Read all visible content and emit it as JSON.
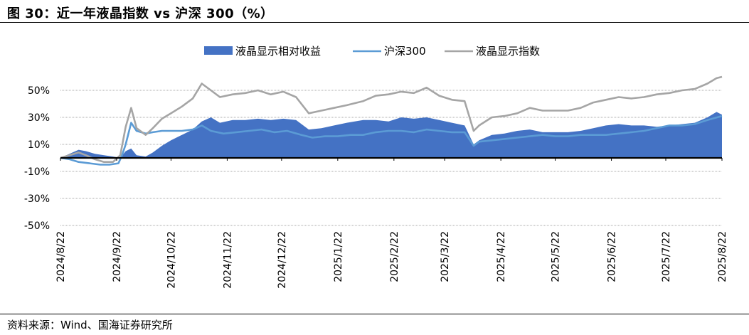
{
  "figure": {
    "title": "图 30：近一年液晶指数 vs 沪深 300（%）",
    "source": "资料来源：Wind、国海证券研究所"
  },
  "chart_data": {
    "type": "area",
    "legend_position": "top",
    "grid": true,
    "ylim": [
      -50,
      60
    ],
    "y_ticks": [
      "50%",
      "30%",
      "10%",
      "-10%",
      "-30%",
      "-50%"
    ],
    "y_tick_values": [
      50,
      30,
      10,
      -10,
      -30,
      -50
    ],
    "x_ticks": [
      "2024/8/22",
      "2024/9/22",
      "2024/10/22",
      "2024/11/22",
      "2024/12/22",
      "2025/1/22",
      "2025/2/22",
      "2025/3/22",
      "2025/4/22",
      "2025/5/22",
      "2025/6/22",
      "2025/7/22",
      "2025/8/22"
    ],
    "x_tick_dates": [
      "2024-08-22",
      "2024-09-22",
      "2024-10-22",
      "2024-11-22",
      "2024-12-22",
      "2025-01-22",
      "2025-02-22",
      "2025-03-22",
      "2025-04-22",
      "2025-05-22",
      "2025-06-22",
      "2025-07-22",
      "2025-08-22"
    ],
    "series": [
      {
        "name": "液晶显示相对收益",
        "kind": "area",
        "color": "#4472C4",
        "points": [
          [
            "2024-08-22",
            0
          ],
          [
            "2024-08-27",
            3
          ],
          [
            "2024-09-01",
            6
          ],
          [
            "2024-09-05",
            5
          ],
          [
            "2024-09-10",
            3
          ],
          [
            "2024-09-15",
            2
          ],
          [
            "2024-09-20",
            1
          ],
          [
            "2024-09-24",
            0
          ],
          [
            "2024-09-27",
            5
          ],
          [
            "2024-09-30",
            7
          ],
          [
            "2024-10-03",
            2
          ],
          [
            "2024-10-08",
            1
          ],
          [
            "2024-10-12",
            4
          ],
          [
            "2024-10-17",
            9
          ],
          [
            "2024-10-22",
            13
          ],
          [
            "2024-10-28",
            17
          ],
          [
            "2024-11-03",
            21
          ],
          [
            "2024-11-08",
            27
          ],
          [
            "2024-11-13",
            30
          ],
          [
            "2024-11-18",
            26
          ],
          [
            "2024-11-25",
            28
          ],
          [
            "2024-12-02",
            28
          ],
          [
            "2024-12-09",
            29
          ],
          [
            "2024-12-16",
            28
          ],
          [
            "2024-12-23",
            29
          ],
          [
            "2024-12-30",
            28
          ],
          [
            "2025-01-06",
            21
          ],
          [
            "2025-01-13",
            22
          ],
          [
            "2025-01-20",
            24
          ],
          [
            "2025-01-27",
            26
          ],
          [
            "2025-02-05",
            28
          ],
          [
            "2025-02-12",
            28
          ],
          [
            "2025-02-19",
            27
          ],
          [
            "2025-02-26",
            30
          ],
          [
            "2025-03-05",
            29
          ],
          [
            "2025-03-12",
            30
          ],
          [
            "2025-03-19",
            28
          ],
          [
            "2025-03-26",
            26
          ],
          [
            "2025-04-02",
            24
          ],
          [
            "2025-04-07",
            10
          ],
          [
            "2025-04-10",
            13
          ],
          [
            "2025-04-17",
            17
          ],
          [
            "2025-04-24",
            18
          ],
          [
            "2025-05-01",
            20
          ],
          [
            "2025-05-08",
            21
          ],
          [
            "2025-05-15",
            19
          ],
          [
            "2025-05-22",
            19
          ],
          [
            "2025-05-29",
            19
          ],
          [
            "2025-06-05",
            20
          ],
          [
            "2025-06-12",
            22
          ],
          [
            "2025-06-19",
            24
          ],
          [
            "2025-06-26",
            25
          ],
          [
            "2025-07-03",
            24
          ],
          [
            "2025-07-10",
            24
          ],
          [
            "2025-07-17",
            23
          ],
          [
            "2025-07-24",
            24
          ],
          [
            "2025-07-31",
            25
          ],
          [
            "2025-08-07",
            26
          ],
          [
            "2025-08-14",
            30
          ],
          [
            "2025-08-19",
            34
          ],
          [
            "2025-08-22",
            32
          ]
        ]
      },
      {
        "name": "沪深300",
        "kind": "line",
        "color": "#5B9BD5",
        "points": [
          [
            "2024-08-22",
            0
          ],
          [
            "2024-08-27",
            -1
          ],
          [
            "2024-09-01",
            -3
          ],
          [
            "2024-09-07",
            -4
          ],
          [
            "2024-09-13",
            -5
          ],
          [
            "2024-09-18",
            -5
          ],
          [
            "2024-09-23",
            -4
          ],
          [
            "2024-09-25",
            2
          ],
          [
            "2024-09-27",
            10
          ],
          [
            "2024-09-30",
            26
          ],
          [
            "2024-10-03",
            20
          ],
          [
            "2024-10-08",
            18
          ],
          [
            "2024-10-12",
            19
          ],
          [
            "2024-10-17",
            20
          ],
          [
            "2024-10-22",
            20
          ],
          [
            "2024-10-28",
            20
          ],
          [
            "2024-11-03",
            21
          ],
          [
            "2024-11-08",
            24
          ],
          [
            "2024-11-13",
            20
          ],
          [
            "2024-11-20",
            18
          ],
          [
            "2024-11-27",
            19
          ],
          [
            "2024-12-04",
            20
          ],
          [
            "2024-12-11",
            21
          ],
          [
            "2024-12-18",
            19
          ],
          [
            "2024-12-25",
            20
          ],
          [
            "2025-01-02",
            17
          ],
          [
            "2025-01-08",
            15
          ],
          [
            "2025-01-15",
            16
          ],
          [
            "2025-01-22",
            16
          ],
          [
            "2025-01-29",
            17
          ],
          [
            "2025-02-05",
            17
          ],
          [
            "2025-02-12",
            19
          ],
          [
            "2025-02-19",
            20
          ],
          [
            "2025-02-26",
            20
          ],
          [
            "2025-03-05",
            19
          ],
          [
            "2025-03-12",
            21
          ],
          [
            "2025-03-19",
            20
          ],
          [
            "2025-03-26",
            19
          ],
          [
            "2025-04-02",
            19
          ],
          [
            "2025-04-07",
            9
          ],
          [
            "2025-04-10",
            12
          ],
          [
            "2025-04-17",
            13
          ],
          [
            "2025-04-24",
            14
          ],
          [
            "2025-05-01",
            15
          ],
          [
            "2025-05-08",
            16
          ],
          [
            "2025-05-15",
            17
          ],
          [
            "2025-05-22",
            16
          ],
          [
            "2025-05-29",
            16
          ],
          [
            "2025-06-05",
            17
          ],
          [
            "2025-06-12",
            17
          ],
          [
            "2025-06-19",
            17
          ],
          [
            "2025-06-26",
            18
          ],
          [
            "2025-07-03",
            19
          ],
          [
            "2025-07-10",
            20
          ],
          [
            "2025-07-17",
            22
          ],
          [
            "2025-07-24",
            24
          ],
          [
            "2025-07-31",
            24
          ],
          [
            "2025-08-07",
            25
          ],
          [
            "2025-08-14",
            28
          ],
          [
            "2025-08-22",
            31
          ]
        ]
      },
      {
        "name": "液晶显示指数",
        "kind": "line",
        "color": "#A5A5A5",
        "points": [
          [
            "2024-08-22",
            0
          ],
          [
            "2024-08-27",
            2
          ],
          [
            "2024-09-01",
            4
          ],
          [
            "2024-09-05",
            2
          ],
          [
            "2024-09-10",
            -1
          ],
          [
            "2024-09-15",
            -3
          ],
          [
            "2024-09-20",
            -3
          ],
          [
            "2024-09-24",
            2
          ],
          [
            "2024-09-27",
            23
          ],
          [
            "2024-09-30",
            37
          ],
          [
            "2024-10-03",
            22
          ],
          [
            "2024-10-08",
            17
          ],
          [
            "2024-10-12",
            22
          ],
          [
            "2024-10-17",
            29
          ],
          [
            "2024-10-22",
            33
          ],
          [
            "2024-10-28",
            38
          ],
          [
            "2024-11-03",
            44
          ],
          [
            "2024-11-08",
            55
          ],
          [
            "2024-11-13",
            50
          ],
          [
            "2024-11-18",
            45
          ],
          [
            "2024-11-25",
            47
          ],
          [
            "2024-12-02",
            48
          ],
          [
            "2024-12-09",
            50
          ],
          [
            "2024-12-16",
            47
          ],
          [
            "2024-12-23",
            49
          ],
          [
            "2024-12-30",
            45
          ],
          [
            "2025-01-06",
            33
          ],
          [
            "2025-01-13",
            35
          ],
          [
            "2025-01-20",
            37
          ],
          [
            "2025-01-27",
            39
          ],
          [
            "2025-02-05",
            42
          ],
          [
            "2025-02-12",
            46
          ],
          [
            "2025-02-19",
            47
          ],
          [
            "2025-02-26",
            49
          ],
          [
            "2025-03-05",
            48
          ],
          [
            "2025-03-12",
            52
          ],
          [
            "2025-03-19",
            46
          ],
          [
            "2025-03-26",
            43
          ],
          [
            "2025-04-02",
            42
          ],
          [
            "2025-04-07",
            20
          ],
          [
            "2025-04-10",
            24
          ],
          [
            "2025-04-17",
            30
          ],
          [
            "2025-04-24",
            31
          ],
          [
            "2025-05-01",
            33
          ],
          [
            "2025-05-08",
            37
          ],
          [
            "2025-05-15",
            35
          ],
          [
            "2025-05-22",
            35
          ],
          [
            "2025-05-29",
            35
          ],
          [
            "2025-06-05",
            37
          ],
          [
            "2025-06-12",
            41
          ],
          [
            "2025-06-19",
            43
          ],
          [
            "2025-06-26",
            45
          ],
          [
            "2025-07-03",
            44
          ],
          [
            "2025-07-10",
            45
          ],
          [
            "2025-07-17",
            47
          ],
          [
            "2025-07-24",
            48
          ],
          [
            "2025-07-31",
            50
          ],
          [
            "2025-08-07",
            51
          ],
          [
            "2025-08-14",
            55
          ],
          [
            "2025-08-19",
            59
          ],
          [
            "2025-08-22",
            60
          ]
        ]
      }
    ]
  }
}
